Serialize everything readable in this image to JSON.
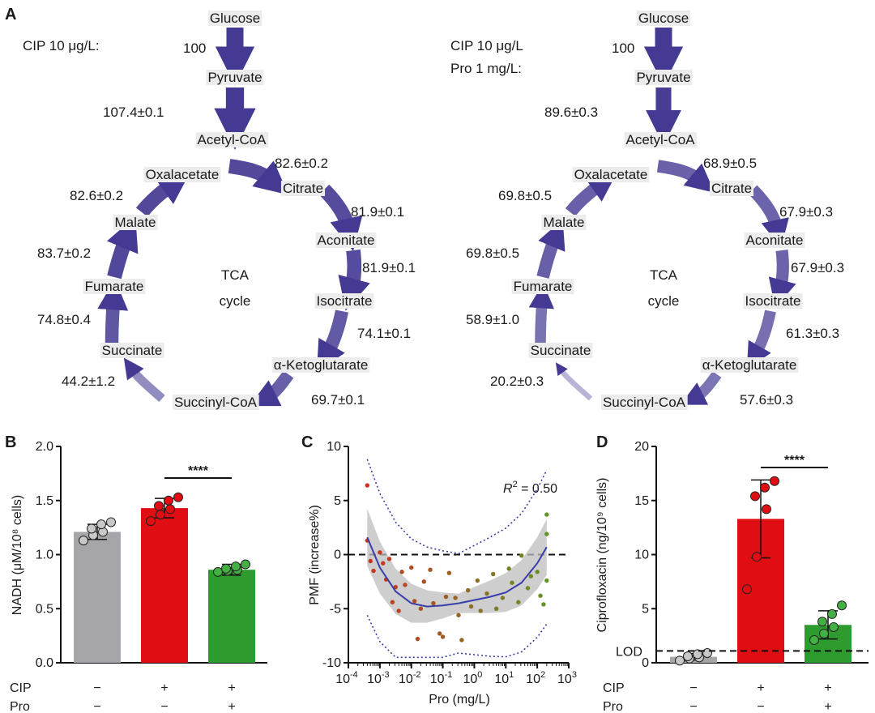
{
  "panel_a": {
    "panel_letter": "A",
    "left": {
      "condition_lines": [
        "CIP 10 μg/L:"
      ],
      "condition_color": "#e8171b",
      "arrow_color": "#443a93",
      "nodes": [
        "Glucose",
        "Pyruvate",
        "Acetyl-CoA",
        "Citrate",
        "Aconitate",
        "Isocitrate",
        "α-Ketoglutarate",
        "Succinyl-CoA",
        "Succinate",
        "Fumarate",
        "Malate",
        "Oxalacetate"
      ],
      "center_label": [
        "TCA",
        "cycle"
      ],
      "fluxes": [
        "100",
        "107.4±0.1",
        "82.6±0.2",
        "81.9±0.1",
        "81.9±0.1",
        "74.1±0.1",
        "69.7±0.1",
        "44.2±1.2",
        "74.8±0.4",
        "83.7±0.2",
        "82.6±0.2"
      ]
    },
    "right": {
      "condition_lines": [
        "CIP 10 μg/L",
        "Pro 1 mg/L:"
      ],
      "condition_color": "#3da63a",
      "arrow_color": "#443a93",
      "nodes": [
        "Glucose",
        "Pyruvate",
        "Acetyl-CoA",
        "Citrate",
        "Aconitate",
        "Isocitrate",
        "α-Ketoglutarate",
        "Succinyl-CoA",
        "Succinate",
        "Fumarate",
        "Malate",
        "Oxalacetate"
      ],
      "center_label": [
        "TCA",
        "cycle"
      ],
      "fluxes": [
        "100",
        "89.6±0.3",
        "68.9±0.5",
        "67.9±0.3",
        "67.9±0.3",
        "61.3±0.3",
        "57.6±0.3",
        "20.2±0.3",
        "58.9±1.0",
        "69.8±0.5",
        "69.8±0.5"
      ]
    }
  },
  "chart_data": [
    {
      "panel": "B",
      "type": "bar",
      "ylabel": "NADH (μM/10⁸ cells)",
      "ylim": [
        0,
        2.0
      ],
      "yticks": [
        "0.0",
        "0.5",
        "1.0",
        "1.5",
        "2.0"
      ],
      "groups": [
        {
          "CIP": "−",
          "Pro": "−",
          "mean": 1.21,
          "sd": 0.07,
          "color": "#a6a6aa",
          "dot_color": "#c8c8c8",
          "points": [
            1.13,
            1.18,
            1.21,
            1.24,
            1.28,
            1.3
          ]
        },
        {
          "CIP": "+",
          "Pro": "−",
          "mean": 1.43,
          "sd": 0.09,
          "color": "#e00d12",
          "dot_color": "#e00d12",
          "points": [
            1.31,
            1.37,
            1.42,
            1.45,
            1.5,
            1.53
          ]
        },
        {
          "CIP": "+",
          "Pro": "+",
          "mean": 0.86,
          "sd": 0.05,
          "color": "#2e9b2e",
          "dot_color": "#44b044",
          "points": [
            0.84,
            0.85,
            0.86,
            0.87,
            0.89,
            0.91
          ]
        }
      ],
      "row_labels": [
        "CIP",
        "Pro"
      ],
      "significance": "****"
    },
    {
      "panel": "C",
      "type": "scatter",
      "xlabel": "Pro (mg/L)",
      "ylabel": "PMF (increase%)",
      "xscale": "log",
      "xlim_exp": [
        -4,
        3
      ],
      "x_tick_labels": [
        [
          "10",
          "-4"
        ],
        [
          "10",
          "-3"
        ],
        [
          "10",
          "-2"
        ],
        [
          "10",
          "-1"
        ],
        [
          "10",
          "0"
        ],
        [
          "10",
          "1"
        ],
        [
          "10",
          "2"
        ],
        [
          "10",
          "3"
        ]
      ],
      "ylim": [
        -10,
        10
      ],
      "yticks": [
        "10",
        "5",
        "0",
        "-5",
        "-10"
      ],
      "r2_label": [
        "R",
        "2",
        " = 0.50"
      ],
      "points_logx": [
        [
          -3.4,
          6.4
        ],
        [
          -3.4,
          1.3
        ],
        [
          -3.3,
          -0.6
        ],
        [
          -3.2,
          -1.5
        ],
        [
          -3.0,
          0.2
        ],
        [
          -2.9,
          -0.8
        ],
        [
          -2.8,
          -2.3
        ],
        [
          -2.7,
          -0.4
        ],
        [
          -2.6,
          -4.4
        ],
        [
          -2.5,
          -3.0
        ],
        [
          -2.4,
          -5.2
        ],
        [
          -2.3,
          -1.6
        ],
        [
          -2.2,
          -2.8
        ],
        [
          -2.0,
          -1.2
        ],
        [
          -1.9,
          -4.3
        ],
        [
          -1.8,
          -7.8
        ],
        [
          -1.7,
          -5.0
        ],
        [
          -1.6,
          -2.5
        ],
        [
          -1.4,
          -1.4
        ],
        [
          -1.3,
          -4.5
        ],
        [
          -1.1,
          -7.3
        ],
        [
          -1.0,
          -7.6
        ],
        [
          -0.9,
          -3.9
        ],
        [
          -0.8,
          -1.7
        ],
        [
          -0.6,
          -4.0
        ],
        [
          -0.5,
          -5.6
        ],
        [
          -0.4,
          -7.9
        ],
        [
          -0.2,
          -3.3
        ],
        [
          -0.1,
          -4.8
        ],
        [
          0.1,
          -2.4
        ],
        [
          0.2,
          -5.2
        ],
        [
          0.4,
          -3.6
        ],
        [
          0.6,
          -1.8
        ],
        [
          0.7,
          -5.0
        ],
        [
          0.9,
          -4.0
        ],
        [
          1.1,
          -1.3
        ],
        [
          1.2,
          -2.6
        ],
        [
          1.4,
          -4.4
        ],
        [
          1.5,
          -0.1
        ],
        [
          1.7,
          -3.1
        ],
        [
          1.8,
          -2.0
        ],
        [
          2.0,
          -1.6
        ],
        [
          2.1,
          -3.8
        ],
        [
          2.2,
          -4.6
        ],
        [
          2.3,
          1.9
        ],
        [
          2.3,
          3.7
        ],
        [
          2.3,
          -2.4
        ]
      ],
      "fit_logx": [
        [
          -3.4,
          1.6
        ],
        [
          -3.0,
          -1.2
        ],
        [
          -2.5,
          -3.4
        ],
        [
          -2.0,
          -4.5
        ],
        [
          -1.5,
          -4.8
        ],
        [
          -1.0,
          -4.7
        ],
        [
          -0.5,
          -4.5
        ],
        [
          0.0,
          -4.2
        ],
        [
          0.5,
          -3.9
        ],
        [
          1.0,
          -3.5
        ],
        [
          1.5,
          -2.6
        ],
        [
          2.0,
          -0.8
        ],
        [
          2.3,
          0.7
        ]
      ],
      "fit_color": "#3a3ea8"
    },
    {
      "panel": "D",
      "type": "bar",
      "ylabel": "Ciprofloxacin (ng/10⁹ cells)",
      "ylim": [
        0,
        20
      ],
      "yticks": [
        "0",
        "5",
        "10",
        "15",
        "20"
      ],
      "lod_label": "LOD",
      "lod_value": 1.1,
      "groups": [
        {
          "CIP": "−",
          "Pro": "−",
          "mean": 0.55,
          "sd": 0.3,
          "color": "#a6a6aa",
          "dot_color": "#c8c8c8",
          "points": [
            0.2,
            0.4,
            0.5,
            0.6,
            0.8,
            0.9
          ]
        },
        {
          "CIP": "+",
          "Pro": "−",
          "mean": 13.3,
          "sd": 3.6,
          "color": "#e00d12",
          "dot_color": "#e00d12",
          "points": [
            6.8,
            9.8,
            14.2,
            15.4,
            16.2,
            16.8
          ]
        },
        {
          "CIP": "+",
          "Pro": "+",
          "mean": 3.5,
          "sd": 1.3,
          "color": "#2e9b2e",
          "dot_color": "#44b044",
          "points": [
            2.1,
            2.7,
            3.3,
            3.8,
            4.5,
            5.3
          ]
        }
      ],
      "row_labels": [
        "CIP",
        "Pro"
      ],
      "significance": "****"
    }
  ]
}
